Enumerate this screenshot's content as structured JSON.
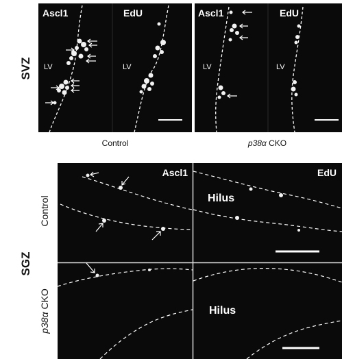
{
  "svz": {
    "row_label": "SVZ",
    "panels": [
      {
        "marker": "Ascl1",
        "region": "LV"
      },
      {
        "marker": "EdU",
        "region": "LV"
      },
      {
        "marker": "Ascl1",
        "region": "LV"
      },
      {
        "marker": "EdU",
        "region": "LV"
      }
    ],
    "conditions": {
      "control": "Control",
      "ko_gene": "p38α",
      "ko_suffix": " CKO"
    }
  },
  "sgz": {
    "row_label": "SGZ",
    "row_control": "Control",
    "row_ko_gene": "p38α",
    "row_ko_suffix": " CKO",
    "panels": {
      "ctrl_ascl1": "Ascl1",
      "ctrl_edu": "EdU",
      "ctrl_hilus": "Hilus",
      "ko_hilus": "Hilus"
    }
  },
  "colors": {
    "panel_bg": "#0a0a0a",
    "signal": "#f2f2f2",
    "label": "#ffffff",
    "annotation": "#111111"
  }
}
